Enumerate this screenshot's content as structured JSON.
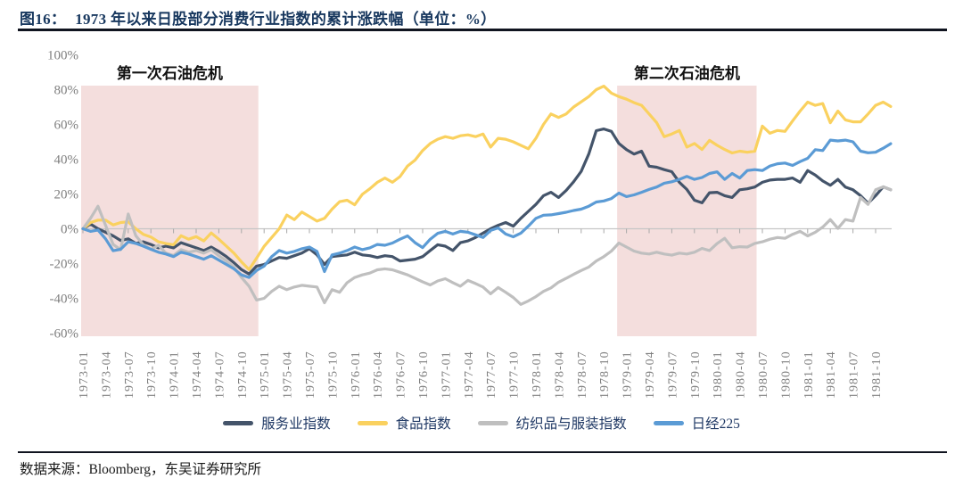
{
  "header": {
    "fig_label": "图16：",
    "title": "1973 年以来日股部分消费行业指数的累计涨跌幅（单位：%）"
  },
  "footer": {
    "source": "数据来源：Bloomberg，东吴证券研究所"
  },
  "colors": {
    "title_navy": "#17375e",
    "axis_text": "#7f7f7f",
    "zero_line": "#c6c6c6",
    "tick": "#a8a8a8",
    "crisis_shade": "#f4dedd",
    "annotation_text": "#111111",
    "rule": "#10141f"
  },
  "chart_data": {
    "type": "line",
    "title": "1973 年以来日股部分消费行业指数的累计涨跌幅（单位：%）",
    "x_start": "1973-01",
    "x_end": "1981-12",
    "x_interval": "monthly",
    "x_tick_labels": [
      "1973-01",
      "1973-04",
      "1973-07",
      "1973-10",
      "1974-01",
      "1974-04",
      "1974-07",
      "1974-10",
      "1975-01",
      "1975-04",
      "1975-07",
      "1975-10",
      "1976-01",
      "1976-04",
      "1976-07",
      "1976-10",
      "1977-01",
      "1977-04",
      "1977-07",
      "1977-10",
      "1978-01",
      "1978-04",
      "1978-07",
      "1978-10",
      "1979-01",
      "1979-04",
      "1979-07",
      "1979-10",
      "1980-01",
      "1980-04",
      "1980-07",
      "1980-10",
      "1981-01",
      "1981-04",
      "1981-07",
      "1981-10"
    ],
    "y_ticks": [
      100,
      80,
      60,
      40,
      20,
      0,
      -20,
      -40,
      -60
    ],
    "y_unit": "%",
    "ylim": [
      -60,
      100
    ],
    "grid": "zero-line-only",
    "legend_position": "bottom",
    "regions": [
      {
        "label": "第一次石油危机",
        "from": "1973-01",
        "to": "1974-12"
      },
      {
        "label": "第二次石油危机",
        "from": "1978-12",
        "to": "1980-06"
      }
    ],
    "series": [
      {
        "id": "services",
        "name": "服务业指数",
        "color": "#44546a",
        "values": [
          0,
          2.7,
          0,
          -2,
          -4.1,
          -6.7,
          -5.8,
          -8.4,
          -7.5,
          -9,
          -11,
          -10,
          -11,
          -8,
          -9.5,
          -11,
          -12.5,
          -10.5,
          -13,
          -16,
          -19.5,
          -23.5,
          -26,
          -21.5,
          -20.5,
          -18.5,
          -16.5,
          -17,
          -15.5,
          -14,
          -11.5,
          -15,
          -20.5,
          -16,
          -15.5,
          -15,
          -13.5,
          -15,
          -15.5,
          -16.5,
          -15.5,
          -16,
          -18.5,
          -18,
          -17.5,
          -16,
          -12.5,
          -9.2,
          -10,
          -12.5,
          -8,
          -7,
          -5,
          -2.5,
          0,
          2,
          3.6,
          1.5,
          6,
          10,
          14,
          19,
          21,
          18,
          22,
          27,
          33,
          43,
          56.4,
          57.4,
          56,
          49,
          45.5,
          43,
          44.6,
          36,
          35.4,
          34,
          32.8,
          26.7,
          22.6,
          16.4,
          14.9,
          20.7,
          21,
          19,
          18,
          22.4,
          23,
          24,
          26.7,
          28,
          28.4,
          28.4,
          29.2,
          26.7,
          33.5,
          30.9,
          27.5,
          25,
          28.4,
          24,
          22.4,
          19,
          14.7,
          19,
          24.1,
          22.4
        ]
      },
      {
        "id": "food",
        "name": "食品指数",
        "color": "#fad15f",
        "values": [
          0,
          3.6,
          5,
          5,
          2.2,
          3.6,
          4,
          0,
          -3.2,
          -4.7,
          -7.5,
          -8.5,
          -9.2,
          -4,
          -6,
          -4.5,
          -7,
          -2.4,
          -6,
          -10,
          -14,
          -19,
          -23.5,
          -16.9,
          -10.1,
          -5,
          0,
          7.9,
          5.3,
          9.6,
          7,
          4.4,
          6,
          11.3,
          15.6,
          16.4,
          13.8,
          19.8,
          23,
          26.7,
          29.2,
          26.7,
          30,
          36.1,
          39.5,
          45,
          49,
          51.5,
          53,
          52,
          53.5,
          54,
          53,
          54.5,
          47,
          52,
          51.5,
          50,
          48,
          46,
          52,
          60,
          66,
          64,
          66,
          70,
          73,
          76,
          80,
          82,
          78,
          76,
          74.5,
          72.5,
          71,
          66,
          61,
          53,
          54.5,
          56.5,
          47,
          49,
          45.6,
          50.8,
          48,
          45.6,
          43.6,
          44.6,
          44,
          44.6,
          59,
          54.9,
          56.5,
          56,
          62,
          67.7,
          72.8,
          71,
          72,
          61,
          67.7,
          62.6,
          61.5,
          61.5,
          66,
          71,
          72.8,
          70.3
        ]
      },
      {
        "id": "textiles-apparel",
        "name": "纺织品与服装指数",
        "color": "#bfbfbf",
        "values": [
          0,
          6,
          13,
          2,
          -9,
          -12,
          8.5,
          -4,
          -9.2,
          -11.8,
          -9.5,
          -14,
          -15.4,
          -12,
          -13.5,
          -12.5,
          -14,
          -12,
          -15.5,
          -18.5,
          -22,
          -28,
          -33,
          -41,
          -40,
          -36,
          -33,
          -35,
          -33.5,
          -32.5,
          -33,
          -33.5,
          -42.5,
          -35,
          -36.5,
          -31,
          -28,
          -26.5,
          -25.5,
          -23.6,
          -23,
          -23.6,
          -25,
          -26.5,
          -28.5,
          -30.5,
          -32.3,
          -30,
          -28.7,
          -31,
          -33,
          -29.7,
          -31.5,
          -33.5,
          -37.4,
          -33.8,
          -36.5,
          -39.5,
          -43.5,
          -41.5,
          -39,
          -36,
          -34,
          -30.7,
          -28.5,
          -26.2,
          -24,
          -22,
          -18.5,
          -16,
          -12.8,
          -8.2,
          -10.5,
          -12.8,
          -14,
          -14.5,
          -13.5,
          -14.5,
          -15.2,
          -14,
          -14.5,
          -13.5,
          -11.3,
          -12.5,
          -8.5,
          -5.5,
          -10.9,
          -10.3,
          -10.5,
          -8.4,
          -7.5,
          -6,
          -5,
          -5.5,
          -3.2,
          -1.5,
          -4.1,
          -2,
          1,
          5.3,
          0.2,
          5.3,
          4.4,
          18,
          14,
          22.4,
          24.1,
          22.4
        ]
      },
      {
        "id": "nikkei-225",
        "name": "日经225",
        "color": "#5b9bd5",
        "values": [
          0,
          -1.5,
          -0.7,
          -5.8,
          -12.6,
          -11.8,
          -7.5,
          -8.4,
          -10,
          -11.8,
          -13.5,
          -14.5,
          -16,
          -13.5,
          -14.5,
          -16,
          -17.5,
          -15.5,
          -18,
          -20.5,
          -23,
          -26.5,
          -28,
          -24,
          -21.5,
          -16,
          -12.5,
          -14,
          -13,
          -11.5,
          -10.5,
          -13,
          -24.6,
          -15,
          -14,
          -12.5,
          -10.5,
          -12,
          -11,
          -9,
          -9.5,
          -8.2,
          -6,
          -4.1,
          -8,
          -10.8,
          -6,
          -2.6,
          -1.5,
          -3,
          -1.5,
          -2,
          -3.5,
          -5,
          -1,
          0.5,
          -3,
          -4.6,
          -2.5,
          1.5,
          6,
          7.8,
          8,
          8.7,
          9.5,
          10.5,
          11.3,
          13,
          15.4,
          16,
          17.4,
          20.5,
          18.5,
          19.5,
          21,
          22.6,
          24,
          26.2,
          27,
          28.4,
          30.1,
          28.4,
          29.5,
          31.8,
          32.7,
          28.4,
          31.8,
          29.2,
          33.5,
          34,
          33.5,
          36.1,
          37.4,
          37.8,
          36.4,
          38.6,
          40.5,
          45.5,
          45,
          51,
          50.5,
          51,
          50,
          44.6,
          43.7,
          44,
          46.3,
          48.9
        ]
      }
    ]
  }
}
